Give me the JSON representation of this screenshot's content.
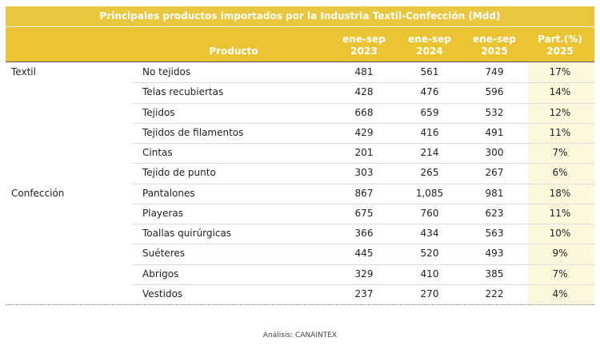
{
  "table": {
    "title": "Principales productos importados por la Industria Textil-Confección (Mdd)",
    "header": [
      [
        "Producto"
      ],
      [
        "ene-sep",
        "2023"
      ],
      [
        "ene-sep",
        "2024"
      ],
      [
        "ene-sep",
        "2025"
      ],
      [
        "Part.(%)",
        "2025"
      ]
    ],
    "groups": [
      {
        "label": "Textil",
        "rows": [
          [
            "No tejidos",
            "481",
            "561",
            "749",
            "17%"
          ],
          [
            "Telas recubiertas",
            "428",
            "476",
            "596",
            "14%"
          ],
          [
            "Tejidos",
            "668",
            "659",
            "532",
            "12%"
          ],
          [
            "Tejidos de filamentos",
            "429",
            "416",
            "491",
            "11%"
          ],
          [
            "Cintas",
            "201",
            "214",
            "300",
            "7%"
          ],
          [
            "Tejido de punto",
            "303",
            "265",
            "267",
            "6%"
          ]
        ]
      },
      {
        "label": "Confección",
        "rows": [
          [
            "Pantalones",
            "867",
            "1,085",
            "981",
            "18%"
          ],
          [
            "Playeras",
            "675",
            "760",
            "623",
            "11%"
          ],
          [
            "Toallas quirúrgicas",
            "366",
            "434",
            "563",
            "10%"
          ],
          [
            "Suéteres",
            "445",
            "520",
            "493",
            "9%"
          ],
          [
            "Abrigos",
            "329",
            "410",
            "385",
            "7%"
          ],
          [
            "Vestidos",
            "237",
            "270",
            "222",
            "4%"
          ]
        ]
      }
    ]
  },
  "footer": {
    "source": "Análisis: CANAINTEX"
  }
}
